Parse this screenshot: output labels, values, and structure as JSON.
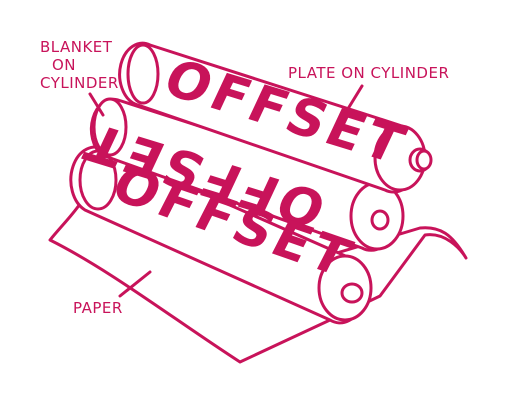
{
  "colors": {
    "ink": "#c8135a",
    "paper": "#ffffff"
  },
  "labels": {
    "blanket_line1": "BLANKET",
    "blanket_line2": "ON",
    "blanket_line3": "CYLINDER",
    "plate": "PLATE ON CYLINDER",
    "paper": "PAPER"
  },
  "cylinders": {
    "plate_text": "OFFSET",
    "blanket_text": "OFFSET",
    "paper_text": "OFFSET"
  }
}
